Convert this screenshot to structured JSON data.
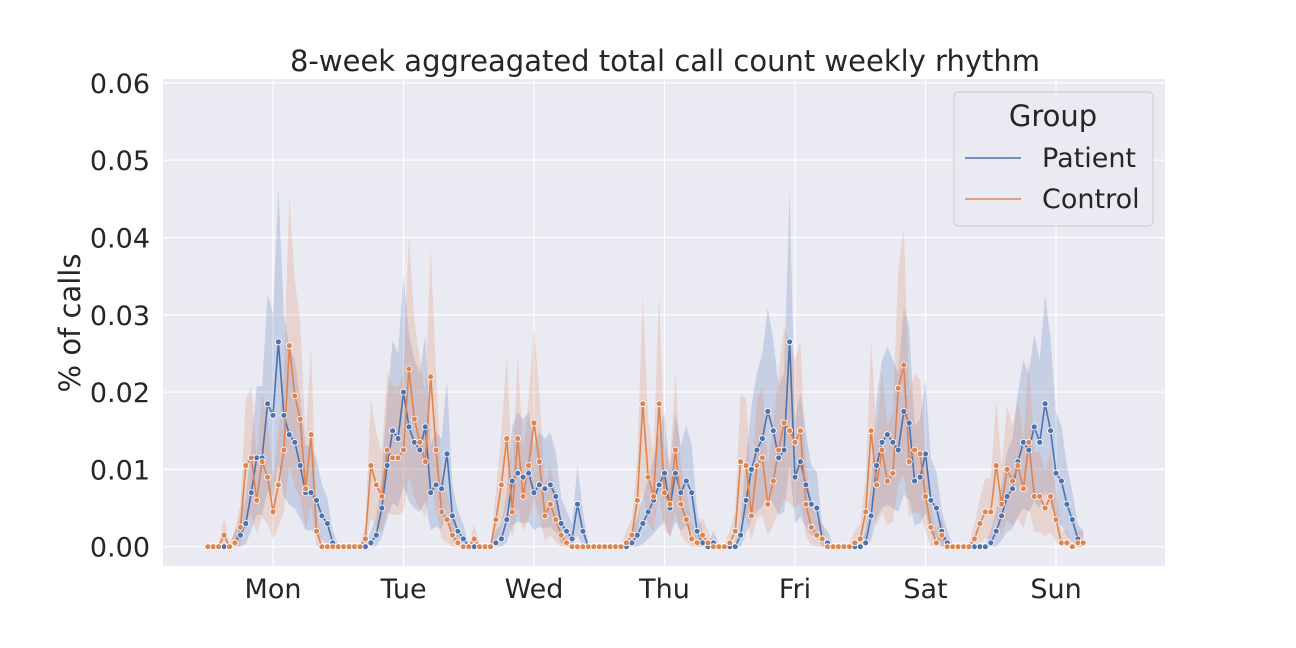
{
  "chart_data": {
    "type": "line",
    "title": "8-week aggreagated total call count weekly rhythm",
    "xlabel": "",
    "ylabel": "% of calls",
    "ylim": [
      -0.0025,
      0.0605
    ],
    "yticks": [
      "0.00",
      "0.01",
      "0.02",
      "0.03",
      "0.04",
      "0.05",
      "0.06"
    ],
    "day_labels": [
      "Mon",
      "Tue",
      "Wed",
      "Thu",
      "Fri",
      "Sat",
      "Sun"
    ],
    "grid": true,
    "legend": {
      "title": "Group",
      "placement": "top-right",
      "entries": [
        "Patient",
        "Control"
      ]
    },
    "colors": {
      "Patient": "#4c72b0",
      "Control": "#dd8452"
    },
    "series": [
      {
        "name": "Patient",
        "values": [
          0,
          0,
          0,
          0,
          0,
          0.0005,
          0.0015,
          0.003,
          0.007,
          0.0115,
          0.0115,
          0.0185,
          0.017,
          0.0265,
          0.017,
          0.0145,
          0.0135,
          0.0105,
          0.007,
          0.007,
          0.006,
          0.004,
          0.003,
          0.0005,
          0,
          0,
          0,
          0,
          0,
          0,
          0.0005,
          0.0015,
          0.005,
          0.0105,
          0.015,
          0.014,
          0.02,
          0.0155,
          0.0135,
          0.0125,
          0.0155,
          0.007,
          0.008,
          0.0075,
          0.012,
          0.004,
          0.002,
          0.001,
          0,
          0,
          0,
          0,
          0,
          0.0005,
          0.001,
          0.0035,
          0.0085,
          0.0095,
          0.009,
          0.0095,
          0.007,
          0.008,
          0.0075,
          0.008,
          0.0065,
          0.003,
          0.002,
          0.001,
          0.0055,
          0.002,
          0,
          0,
          0,
          0,
          0,
          0,
          0,
          0,
          0.0005,
          0.0015,
          0.003,
          0.0045,
          0.006,
          0.008,
          0.0095,
          0.005,
          0.0095,
          0.007,
          0.0085,
          0.007,
          0.002,
          0.0005,
          0,
          0.0005,
          0,
          0,
          0,
          0,
          0.0015,
          0.006,
          0.01,
          0.0125,
          0.014,
          0.0175,
          0.015,
          0.0115,
          0.0125,
          0.0265,
          0.009,
          0.011,
          0.008,
          0.0055,
          0.005,
          0.001,
          0.0005,
          0,
          0,
          0,
          0,
          0,
          0,
          0.0005,
          0.004,
          0.0105,
          0.0135,
          0.0145,
          0.0135,
          0.0125,
          0.0175,
          0.016,
          0.0085,
          0.009,
          0.012,
          0.006,
          0.005,
          0.002,
          0.0005,
          0,
          0,
          0,
          0,
          0,
          0,
          0,
          0.0005,
          0.002,
          0.004,
          0.0065,
          0.0075,
          0.011,
          0.0135,
          0.0125,
          0.0155,
          0.0135,
          0.0185,
          0.015,
          0.0095,
          0.0085,
          0.0055,
          0.0035,
          0.001,
          0.0005
        ]
      },
      {
        "name": "Control",
        "values": [
          0,
          0,
          0,
          0.0015,
          0,
          0.0005,
          0.0025,
          0.0105,
          0.0115,
          0.006,
          0.011,
          0.009,
          0.0045,
          0.008,
          0.0125,
          0.026,
          0.0195,
          0.0165,
          0.0075,
          0.0145,
          0.002,
          0,
          0,
          0,
          0,
          0,
          0,
          0,
          0,
          0.001,
          0.0105,
          0.008,
          0.0065,
          0.0125,
          0.0115,
          0.0115,
          0.0125,
          0.023,
          0.0165,
          0.0135,
          0.011,
          0.022,
          0.0125,
          0.0045,
          0.0035,
          0.0015,
          0.0005,
          0,
          0,
          0.001,
          0,
          0,
          0,
          0.0035,
          0.008,
          0.014,
          0.0045,
          0.014,
          0.0065,
          0.0105,
          0.016,
          0.011,
          0.004,
          0.0055,
          0.0035,
          0.0015,
          0.0005,
          0,
          0,
          0,
          0,
          0,
          0,
          0,
          0,
          0,
          0,
          0.0005,
          0.0015,
          0.006,
          0.0185,
          0.009,
          0.0065,
          0.0185,
          0.007,
          0.0055,
          0.0125,
          0.0055,
          0.0035,
          0.001,
          0.0005,
          0.0015,
          0.0005,
          0,
          0,
          0,
          0.0005,
          0.002,
          0.011,
          0.0105,
          0.004,
          0.0105,
          0.0115,
          0.0055,
          0.0085,
          0.0125,
          0.016,
          0.015,
          0.0135,
          0.015,
          0.0055,
          0.0025,
          0.0015,
          0.001,
          0,
          0,
          0,
          0,
          0,
          0.0005,
          0.001,
          0.0045,
          0.015,
          0.008,
          0.0125,
          0.0085,
          0.0095,
          0.0205,
          0.0235,
          0.011,
          0.0125,
          0.012,
          0.0065,
          0.0025,
          0.0005,
          0.0015,
          0,
          0,
          0,
          0,
          0,
          0.001,
          0.003,
          0.0045,
          0.0045,
          0.0105,
          0.0055,
          0.01,
          0.0085,
          0.0105,
          0.0075,
          0.0135,
          0.0065,
          0.0065,
          0.005,
          0.0065,
          0.0035,
          0.0005,
          0.0005,
          0,
          0.0005,
          0.0005
        ]
      }
    ]
  }
}
